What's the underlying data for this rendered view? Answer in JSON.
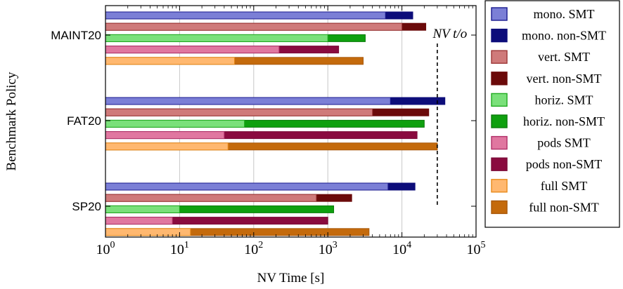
{
  "chart_data": {
    "type": "bar",
    "orientation": "horizontal",
    "xscale": "log",
    "xlim": [
      1,
      100000
    ],
    "xlabel": "NV Time [s]",
    "ylabel": "Benchmark Policy",
    "grid": true,
    "legend_position": "right",
    "x_ticks": [
      {
        "base": "10",
        "exp": "0"
      },
      {
        "base": "10",
        "exp": "1"
      },
      {
        "base": "10",
        "exp": "2"
      },
      {
        "base": "10",
        "exp": "3"
      },
      {
        "base": "10",
        "exp": "4"
      },
      {
        "base": "10",
        "exp": "5"
      }
    ],
    "categories": [
      "MAINT20",
      "FAT20",
      "SP20"
    ],
    "timeout": {
      "value": 30000,
      "label": "NV t/o"
    },
    "series": [
      {
        "name": "mono. SMT",
        "color": "#7b7fd6",
        "edge": "#1a1a8f",
        "values": [
          6000,
          7000,
          6500
        ]
      },
      {
        "name": "mono. non-SMT",
        "color": "#0d0d7a",
        "edge": "#0d0d7a",
        "values": [
          14000,
          38000,
          15000
        ]
      },
      {
        "name": "vert. SMT",
        "color": "#cf7a7a",
        "edge": "#9c3636",
        "values": [
          10000,
          4000,
          700
        ]
      },
      {
        "name": "vert. non-SMT",
        "color": "#6b0a0a",
        "edge": "#6b0a0a",
        "values": [
          21000,
          23000,
          2100
        ]
      },
      {
        "name": "horiz. SMT",
        "color": "#7ae07a",
        "edge": "#1faa1f",
        "values": [
          1000,
          75,
          10
        ]
      },
      {
        "name": "horiz. non-SMT",
        "color": "#0fa00f",
        "edge": "#0b7a0b",
        "values": [
          3200,
          20000,
          1200
        ]
      },
      {
        "name": "pods SMT",
        "color": "#e077a0",
        "edge": "#b03068",
        "values": [
          220,
          40,
          8
        ]
      },
      {
        "name": "pods non-SMT",
        "color": "#8a0b3f",
        "edge": "#7a0a37",
        "values": [
          1400,
          16000,
          1000
        ]
      },
      {
        "name": "full SMT",
        "color": "#ffb870",
        "edge": "#e88a1a",
        "values": [
          55,
          45,
          14
        ]
      },
      {
        "name": "full non-SMT",
        "color": "#c46a0c",
        "edge": "#a8580a",
        "values": [
          3000,
          30000,
          3600
        ]
      }
    ]
  }
}
